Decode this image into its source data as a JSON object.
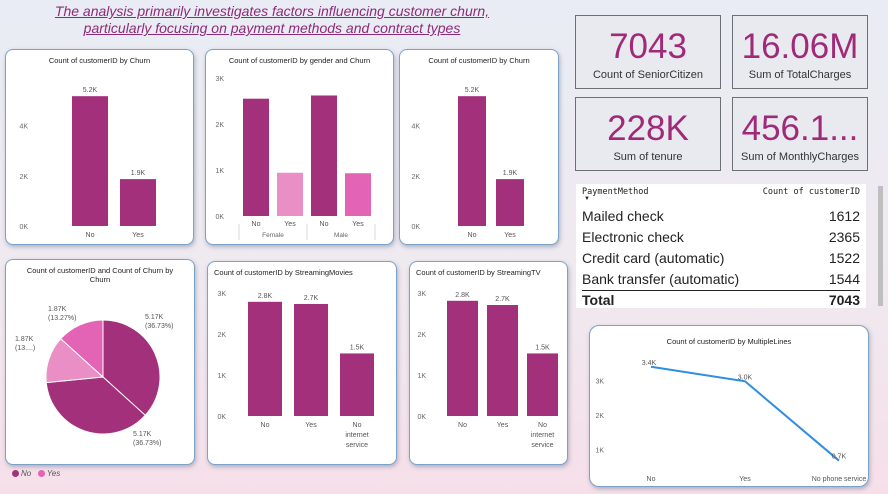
{
  "title": [
    "The analysis primarily investigates factors influencing customer churn,",
    " particularly focusing on payment methods and contract types"
  ],
  "colors": {
    "no": "#a3307a",
    "yes": "#e364b4",
    "yes_light": "#e98fc6",
    "line": "#2f8ee0"
  },
  "kpis": [
    {
      "value": "7043",
      "label": "Count of SeniorCitizen"
    },
    {
      "value": "16.06M",
      "label": "Sum of TotalCharges"
    },
    {
      "value": "228K",
      "label": "Sum of tenure"
    },
    {
      "value": "456.1...",
      "label": "Sum of MonthlyCharges"
    }
  ],
  "table": {
    "header": {
      "col1": "PaymentMethod",
      "col2": "Count of customerID"
    },
    "rows": [
      {
        "method": "Mailed check",
        "count": "1612"
      },
      {
        "method": "Electronic check",
        "count": "2365"
      },
      {
        "method": "Credit card (automatic)",
        "count": "1522"
      },
      {
        "method": "Bank transfer (automatic)",
        "count": "1544"
      }
    ],
    "total": {
      "label": "Total",
      "count": "7043"
    }
  },
  "legend": {
    "no": "No",
    "yes": "Yes"
  },
  "chart_data": [
    {
      "id": "churn1",
      "type": "bar",
      "title": "Count of customerID by Churn",
      "categories": [
        "No",
        "Yes"
      ],
      "values": [
        5174,
        1869
      ],
      "labels": [
        "5.2K",
        "1.9K"
      ],
      "yticks": [
        "0K",
        "2K",
        "4K"
      ],
      "ylim": [
        0,
        5500
      ]
    },
    {
      "id": "gender",
      "type": "bar",
      "title": "Count of customerID by gender and Churn",
      "categories": [
        "No",
        "Yes",
        "No",
        "Yes"
      ],
      "groups": [
        "Female",
        "Male"
      ],
      "values": [
        2550,
        940,
        2620,
        930
      ],
      "yticks": [
        "0K",
        "1K",
        "2K",
        "3K"
      ],
      "ylim": [
        0,
        3000
      ]
    },
    {
      "id": "churn2",
      "type": "bar",
      "title": "Count of customerID by Churn",
      "categories": [
        "No",
        "Yes"
      ],
      "values": [
        5174,
        1869
      ],
      "labels": [
        "5.2K",
        "1.9K"
      ],
      "yticks": [
        "0K",
        "2K",
        "4K"
      ],
      "ylim": [
        0,
        5500
      ]
    },
    {
      "id": "pie",
      "type": "pie",
      "title": "Count of customerID and Count of Churn by Churn",
      "values": [
        5170,
        5170,
        1870,
        1870
      ],
      "labels": [
        "5.17K (36.73%)",
        "5.17K (36.73%)",
        "1.87K (13.27%)",
        "1.87K (13....)"
      ]
    },
    {
      "id": "movies",
      "type": "bar",
      "title": "Count of customerID by StreamingMovies",
      "categories": [
        "No",
        "Yes",
        "No internet service"
      ],
      "values": [
        2785,
        2732,
        1526
      ],
      "labels": [
        "2.8K",
        "2.7K",
        "1.5K"
      ],
      "yticks": [
        "0K",
        "1K",
        "2K",
        "3K"
      ],
      "ylim": [
        0,
        3000
      ]
    },
    {
      "id": "tv",
      "type": "bar",
      "title": "Count of customerID by StreamingTV",
      "categories": [
        "No",
        "Yes",
        "No internet service"
      ],
      "values": [
        2810,
        2707,
        1526
      ],
      "labels": [
        "2.8K",
        "2.7K",
        "1.5K"
      ],
      "yticks": [
        "0K",
        "1K",
        "2K",
        "3K"
      ],
      "ylim": [
        0,
        3000
      ]
    },
    {
      "id": "lines",
      "type": "line",
      "title": "Count of customerID by MultipleLines",
      "categories": [
        "No",
        "Yes",
        "No phone service"
      ],
      "values": [
        3390,
        2971,
        682
      ],
      "labels": [
        "3.4K",
        "3.0K",
        "0.7K"
      ],
      "yticks": [
        "1K",
        "2K",
        "3K"
      ],
      "ylim": [
        500,
        3700
      ]
    }
  ]
}
